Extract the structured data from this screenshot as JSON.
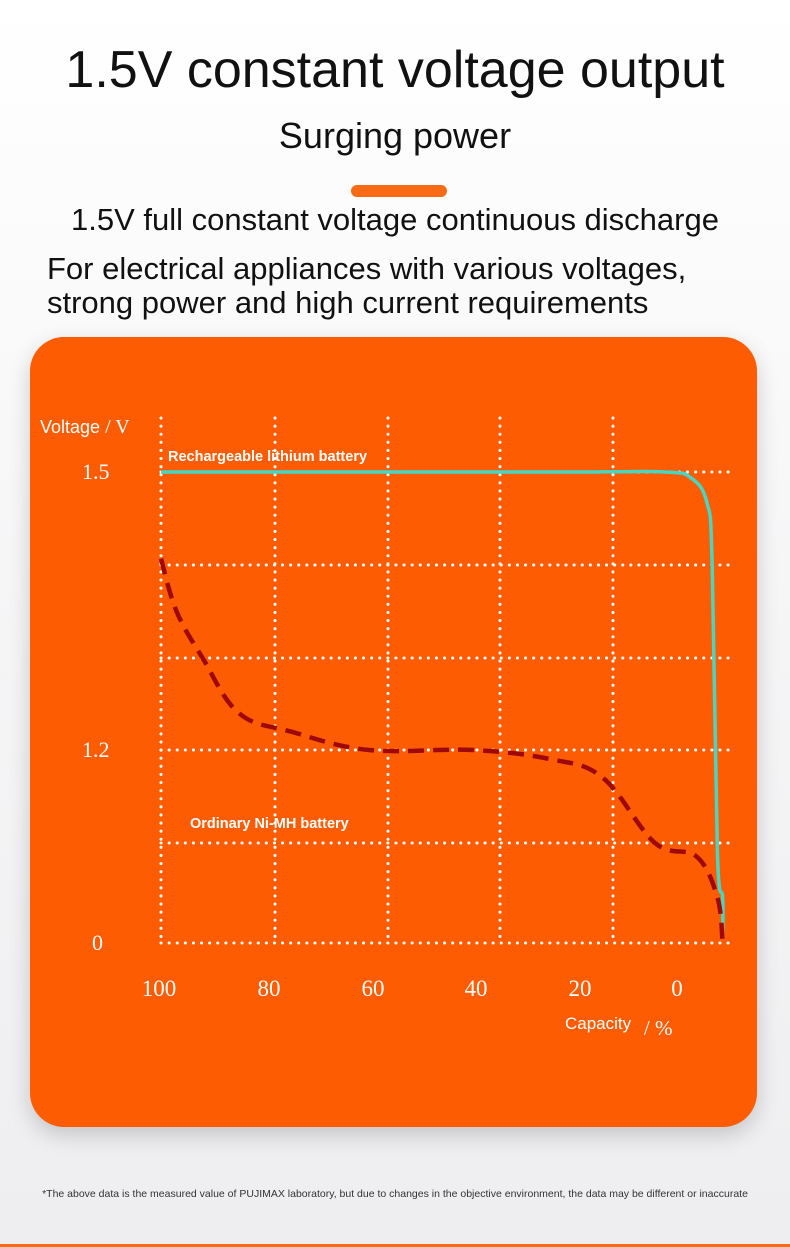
{
  "header": {
    "title": "1.5V constant voltage output",
    "subtitle": "Surging power",
    "feature": "1.5V full constant voltage continuous discharge",
    "description_line1": "For electrical appliances with various voltages,",
    "description_line2": "strong power and high current requirements"
  },
  "colors": {
    "accent": "#f96a14",
    "card": "#fd5c02",
    "lithium_line": "#46d6c2",
    "nimh_line": "#9e0808",
    "grid": "#ffffff"
  },
  "chart_data": {
    "type": "line",
    "title": "",
    "ylabel": "Voltage",
    "ylabel_unit": "/ V",
    "xlabel": "Capacity",
    "xlabel_unit": "/ %",
    "x_reversed": true,
    "xlim": [
      100,
      -9
    ],
    "ylim": [
      0,
      1.5
    ],
    "x_ticks": [
      "100",
      "80",
      "60",
      "40",
      "20",
      "0"
    ],
    "x_tick_values": [
      100,
      80,
      60,
      40,
      20,
      0
    ],
    "y_ticks": [
      "1.5",
      "1.2",
      "0"
    ],
    "y_tick_values": [
      1.5,
      1.2,
      0
    ],
    "y_grid_values": [
      1.5,
      1.35,
      1.25,
      1.2,
      1.1,
      0
    ],
    "grid": true,
    "grid_style": "dotted",
    "series": [
      {
        "name": "Rechargeable lithium battery",
        "style": "solid",
        "color": "#46d6c2",
        "points": [
          [
            100,
            1.5
          ],
          [
            80,
            1.5
          ],
          [
            60,
            1.5
          ],
          [
            40,
            1.5
          ],
          [
            20,
            1.5
          ],
          [
            3,
            1.5
          ],
          [
            -2,
            1.49
          ],
          [
            -5,
            1.45
          ],
          [
            -6,
            1.35
          ],
          [
            -7,
            1.0
          ],
          [
            -8,
            0.5
          ],
          [
            -8,
            0.08
          ]
        ]
      },
      {
        "name": "Ordinary Ni-MH battery",
        "style": "dashed",
        "color": "#9e0808",
        "points": [
          [
            100,
            1.36
          ],
          [
            97,
            1.3
          ],
          [
            92,
            1.25
          ],
          [
            85,
            1.22
          ],
          [
            75,
            1.21
          ],
          [
            60,
            1.2
          ],
          [
            40,
            1.2
          ],
          [
            25,
            1.19
          ],
          [
            15,
            1.17
          ],
          [
            5,
            1.1
          ],
          [
            -3,
            0.95
          ],
          [
            -7,
            0.5
          ],
          [
            -8,
            0.0
          ]
        ]
      }
    ]
  },
  "footnote": "*The above data is the measured value of PUJIMAX laboratory, but due to changes in the objective environment, the data may be different or inaccurate"
}
